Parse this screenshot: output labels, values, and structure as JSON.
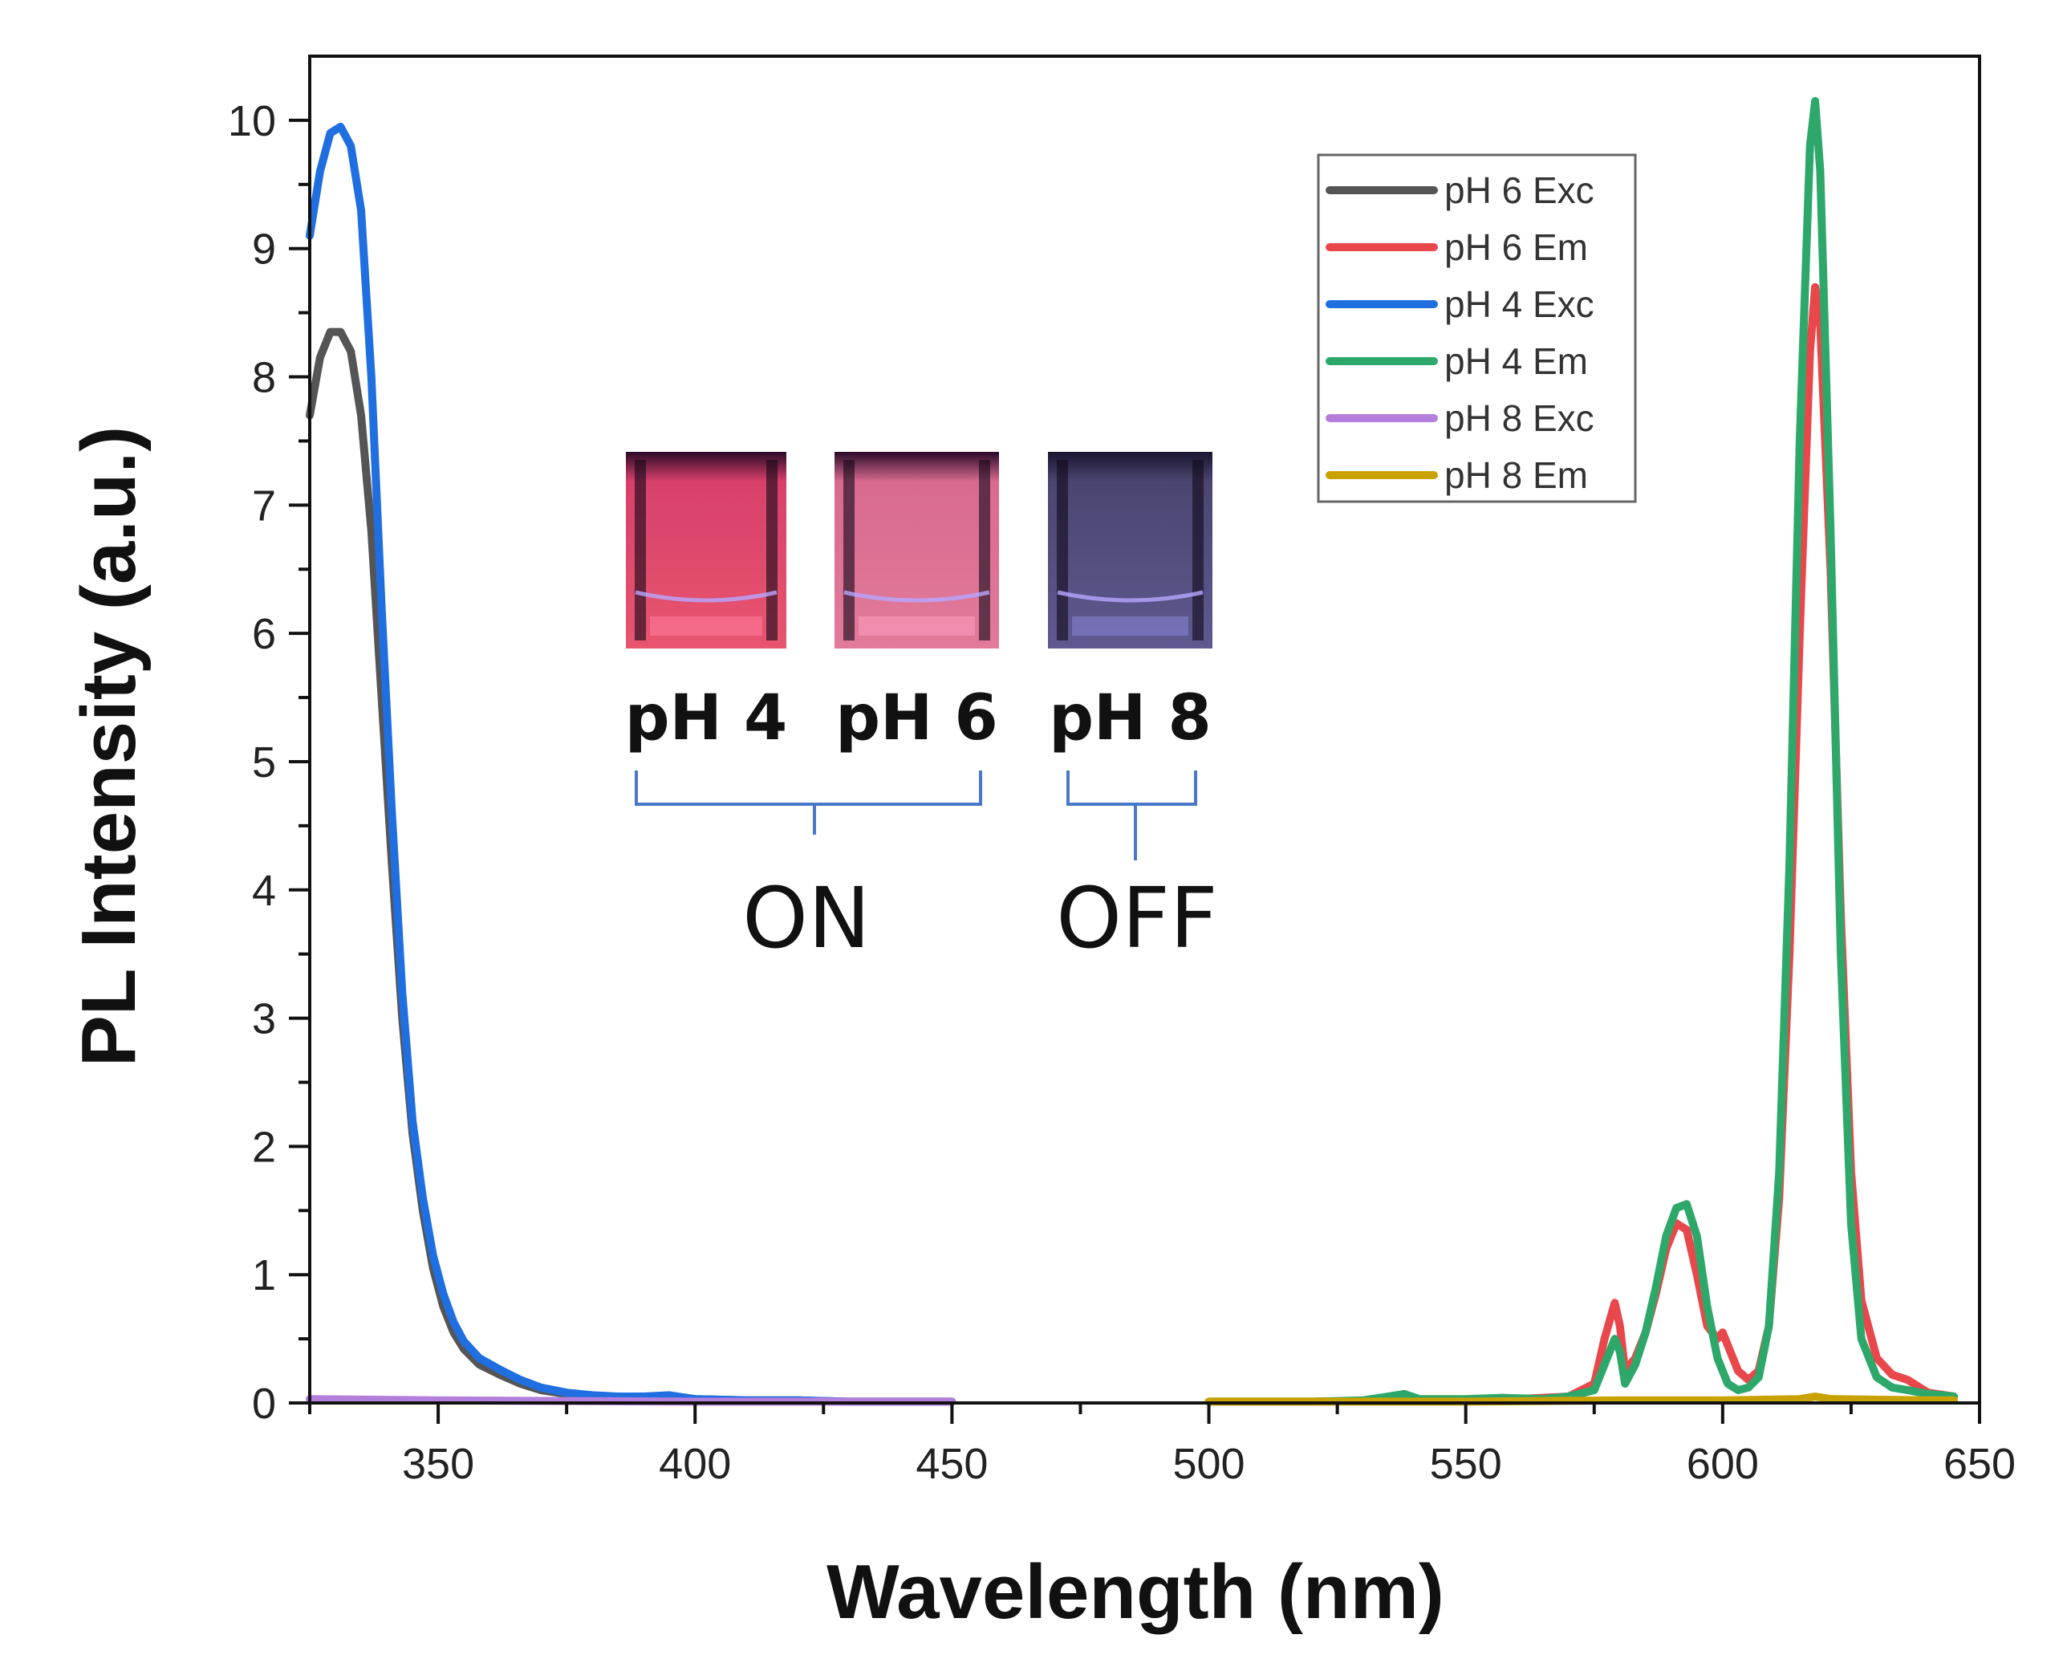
{
  "chart_data": {
    "type": "line",
    "title": "",
    "xlabel": "Wavelength (nm)",
    "ylabel": "PL Intensity (a.u.)",
    "xlim": [
      325,
      650
    ],
    "ylim": [
      0,
      10.5
    ],
    "xticks": [
      350,
      400,
      450,
      500,
      550,
      600,
      650
    ],
    "yticks": [
      0,
      1,
      2,
      3,
      4,
      5,
      6,
      7,
      8,
      9,
      10
    ],
    "grid": false,
    "legend_position": "top-right",
    "series": [
      {
        "name": "pH 6 Exc",
        "color": "#555555",
        "x": [
          325,
          327,
          329,
          331,
          333,
          335,
          337,
          339,
          341,
          343,
          345,
          347,
          349,
          351,
          353,
          355,
          358,
          362,
          366,
          370,
          375,
          380,
          385,
          390,
          395,
          400,
          410,
          420,
          430,
          440,
          450
        ],
        "y": [
          7.7,
          8.15,
          8.35,
          8.35,
          8.2,
          7.7,
          6.8,
          5.5,
          4.2,
          3.0,
          2.1,
          1.5,
          1.05,
          0.75,
          0.55,
          0.42,
          0.3,
          0.22,
          0.15,
          0.1,
          0.07,
          0.05,
          0.04,
          0.04,
          0.05,
          0.03,
          0.02,
          0.02,
          0.01,
          0.01,
          0.01
        ]
      },
      {
        "name": "pH 6 Em",
        "color": "#e8474b",
        "x": [
          500,
          520,
          540,
          560,
          570,
          575,
          577,
          579,
          580,
          581,
          583,
          585,
          587,
          589,
          591,
          593,
          595,
          597,
          599,
          600,
          601,
          603,
          605,
          607,
          609,
          611,
          613,
          615,
          617,
          618,
          619,
          621,
          623,
          625,
          627,
          630,
          633,
          636,
          640,
          645
        ],
        "y": [
          0.01,
          0.01,
          0.02,
          0.03,
          0.05,
          0.15,
          0.5,
          0.78,
          0.6,
          0.25,
          0.35,
          0.55,
          0.85,
          1.2,
          1.4,
          1.35,
          1.0,
          0.6,
          0.5,
          0.55,
          0.45,
          0.25,
          0.18,
          0.25,
          0.6,
          1.6,
          3.5,
          6.0,
          8.2,
          8.7,
          8.4,
          6.5,
          3.8,
          1.8,
          0.8,
          0.35,
          0.22,
          0.18,
          0.08,
          0.05
        ]
      },
      {
        "name": "pH 4 Exc",
        "color": "#1f6fe0",
        "x": [
          325,
          327,
          329,
          331,
          333,
          335,
          337,
          339,
          341,
          343,
          345,
          347,
          349,
          351,
          353,
          355,
          358,
          362,
          366,
          370,
          375,
          380,
          385,
          390,
          395,
          400,
          410,
          420,
          430,
          440,
          450
        ],
        "y": [
          9.1,
          9.6,
          9.9,
          9.95,
          9.8,
          9.3,
          8.0,
          6.2,
          4.6,
          3.2,
          2.2,
          1.6,
          1.15,
          0.85,
          0.63,
          0.48,
          0.35,
          0.26,
          0.18,
          0.12,
          0.08,
          0.06,
          0.05,
          0.05,
          0.06,
          0.03,
          0.02,
          0.02,
          0.01,
          0.01,
          0.01
        ]
      },
      {
        "name": "pH 4 Em",
        "color": "#2ea86a",
        "x": [
          500,
          520,
          530,
          535,
          538,
          541,
          550,
          557,
          565,
          570,
          575,
          577,
          579,
          580,
          581,
          583,
          585,
          587,
          589,
          591,
          593,
          595,
          597,
          599,
          601,
          603,
          605,
          607,
          609,
          611,
          613,
          615,
          617,
          618,
          619,
          621,
          623,
          625,
          627,
          630,
          633,
          636,
          640,
          645
        ],
        "y": [
          0.01,
          0.01,
          0.02,
          0.05,
          0.07,
          0.03,
          0.03,
          0.04,
          0.03,
          0.05,
          0.1,
          0.3,
          0.5,
          0.4,
          0.15,
          0.3,
          0.55,
          0.9,
          1.3,
          1.52,
          1.55,
          1.3,
          0.75,
          0.35,
          0.15,
          0.1,
          0.12,
          0.2,
          0.6,
          1.8,
          4.2,
          7.5,
          9.8,
          10.15,
          9.6,
          6.8,
          3.5,
          1.4,
          0.5,
          0.2,
          0.12,
          0.1,
          0.07,
          0.05
        ]
      },
      {
        "name": "pH 8 Exc",
        "color": "#b47fdc",
        "x": [
          325,
          350,
          400,
          450
        ],
        "y": [
          0.03,
          0.02,
          0.01,
          0.01
        ]
      },
      {
        "name": "pH 8 Em",
        "color": "#c9a100",
        "x": [
          500,
          550,
          580,
          600,
          615,
          618,
          621,
          640,
          645
        ],
        "y": [
          0.01,
          0.01,
          0.02,
          0.02,
          0.03,
          0.05,
          0.03,
          0.02,
          0.02
        ]
      }
    ]
  },
  "inset": {
    "vials": [
      {
        "label": "pH 4",
        "liquid_color": "#e8556f",
        "glow_color": "#ff7fa0"
      },
      {
        "label": "pH 6",
        "liquid_color": "#e27a9a",
        "glow_color": "#ff9ec0"
      },
      {
        "label": "pH 8",
        "liquid_color": "#55507e",
        "glow_color": "#8a86d8"
      }
    ],
    "groups": [
      {
        "label": "ON"
      },
      {
        "label": "OFF"
      }
    ],
    "bracket_color": "#4a78c8"
  }
}
